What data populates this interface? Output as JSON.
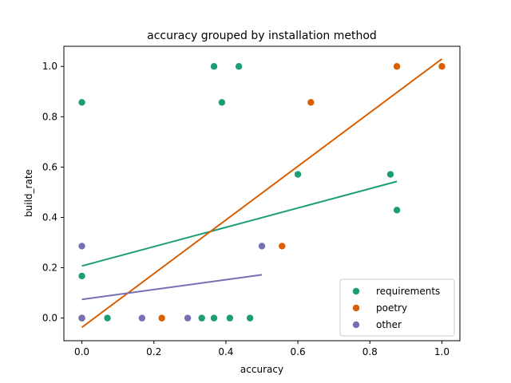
{
  "chart_data": {
    "type": "scatter",
    "title": "accuracy grouped by installation method",
    "xlabel": "accuracy",
    "ylabel": "build_rate",
    "xlim": [
      -0.05,
      1.05
    ],
    "ylim": [
      -0.09,
      1.08
    ],
    "xticks": [
      0.0,
      0.2,
      0.4,
      0.6,
      0.8,
      1.0
    ],
    "yticks": [
      0.0,
      0.2,
      0.4,
      0.6,
      0.8,
      1.0
    ],
    "xtick_labels": [
      "0.0",
      "0.2",
      "0.4",
      "0.6",
      "0.8",
      "1.0"
    ],
    "ytick_labels": [
      "0.0",
      "0.2",
      "0.4",
      "0.6",
      "0.8",
      "1.0"
    ],
    "grid": false,
    "legend_position": "bottom-right",
    "series": [
      {
        "name": "requirements",
        "color": "#1b9e77",
        "points": [
          [
            0.0,
            0.857
          ],
          [
            0.0,
            0.167
          ],
          [
            0.0,
            0.0
          ],
          [
            0.071,
            0.0
          ],
          [
            0.333,
            0.0
          ],
          [
            0.367,
            0.0
          ],
          [
            0.411,
            0.0
          ],
          [
            0.467,
            0.0
          ],
          [
            0.367,
            1.0
          ],
          [
            0.436,
            1.0
          ],
          [
            0.389,
            0.857
          ],
          [
            0.6,
            0.571
          ],
          [
            0.857,
            0.571
          ],
          [
            0.875,
            0.429
          ]
        ],
        "trend": {
          "x0": 0.0,
          "y0": 0.207,
          "x1": 0.875,
          "y1": 0.543
        }
      },
      {
        "name": "poetry",
        "color": "#d95f02",
        "points": [
          [
            0.0,
            0.0
          ],
          [
            0.222,
            0.0
          ],
          [
            0.556,
            0.286
          ],
          [
            0.636,
            0.857
          ],
          [
            0.875,
            1.0
          ],
          [
            1.0,
            1.0
          ]
        ],
        "trend": {
          "x0": 0.0,
          "y0": -0.037,
          "x1": 1.0,
          "y1": 1.03
        }
      },
      {
        "name": "other",
        "color": "#7570b3",
        "points": [
          [
            0.0,
            0.286
          ],
          [
            0.0,
            0.0
          ],
          [
            0.167,
            0.0
          ],
          [
            0.294,
            0.0
          ],
          [
            0.5,
            0.286
          ]
        ],
        "trend": {
          "x0": 0.0,
          "y0": 0.074,
          "x1": 0.5,
          "y1": 0.172
        }
      }
    ]
  }
}
